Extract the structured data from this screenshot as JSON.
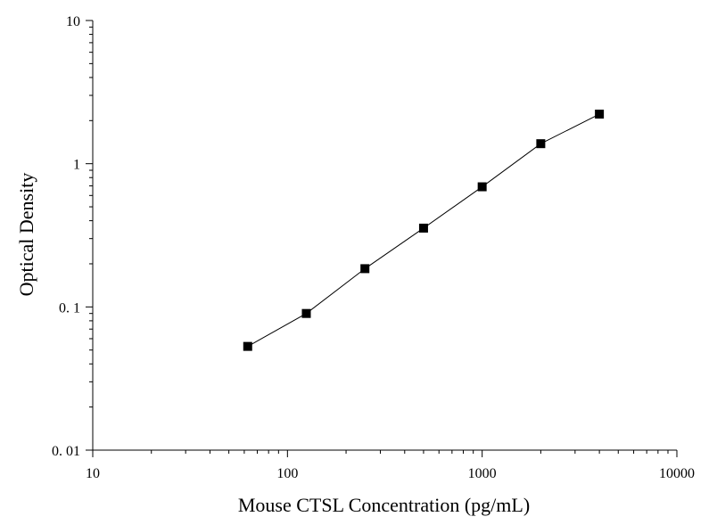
{
  "chart_data": {
    "type": "scatter",
    "title": "",
    "xlabel": "Mouse CTSL Concentration (pg/mL)",
    "ylabel": "Optical Density",
    "xscale": "log",
    "yscale": "log",
    "xlim": [
      10,
      10000
    ],
    "ylim": [
      0.01,
      10
    ],
    "x_tick_labels": [
      "10",
      "100",
      "1000",
      "10000"
    ],
    "y_tick_labels": [
      "0. 01",
      "0. 1",
      "1",
      "10"
    ],
    "grid": false,
    "legend": "none",
    "marker": "filled-square",
    "connected": true,
    "series": [
      {
        "x": [
          62.5,
          125,
          250,
          500,
          1000,
          2000,
          4000
        ],
        "y": [
          0.053,
          0.09,
          0.185,
          0.355,
          0.69,
          1.38,
          2.22
        ]
      }
    ]
  }
}
